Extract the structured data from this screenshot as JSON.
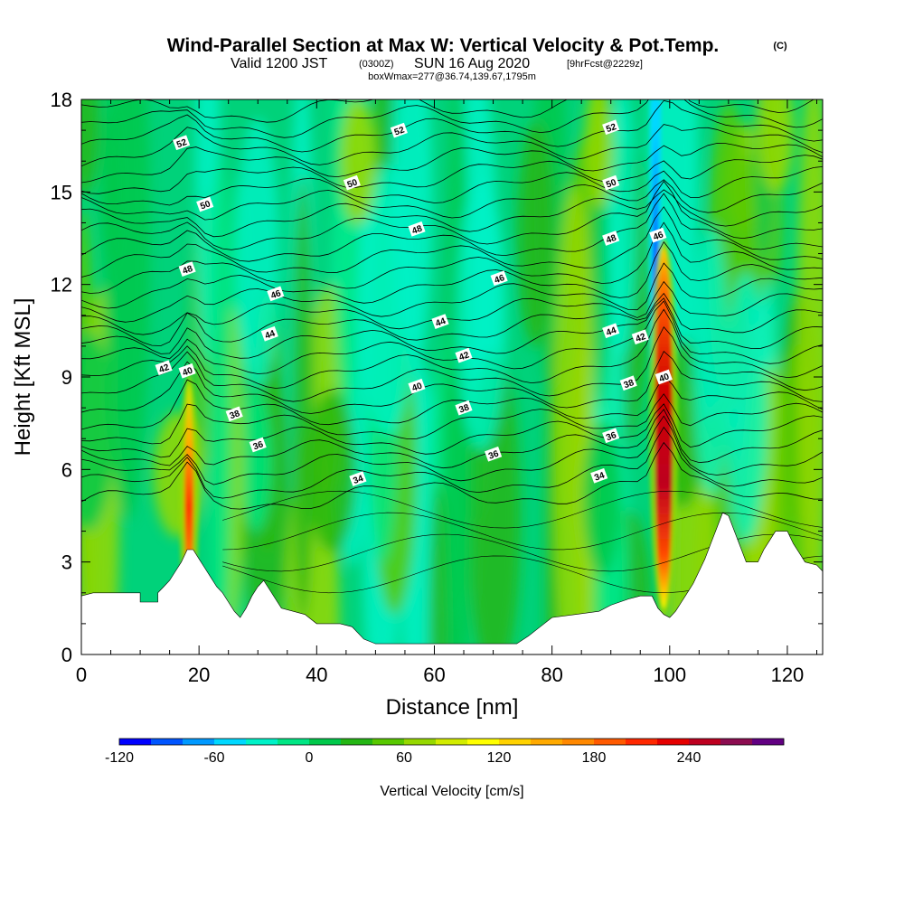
{
  "chart_data": {
    "type": "heatmap",
    "title": "Wind-Parallel Section at Max W: Vertical Velocity & Pot.Temp.",
    "title_mark": "(C)",
    "subtitle_valid": "Valid 1200 JST",
    "subtitle_utc": "(0300Z)",
    "subtitle_date": "SUN 16 Aug 2020",
    "subtitle_fcst": "[9hrFcst@2229z]",
    "subtitle2": "boxWmax=277@36.74,139.67,1795m",
    "xlabel": "Distance [nm]",
    "ylabel": "Height [Kft MSL]",
    "xlim": [
      0,
      126
    ],
    "ylim": [
      0,
      18
    ],
    "xticks": [
      "0",
      "20",
      "40",
      "60",
      "80",
      "100",
      "120"
    ],
    "yticks": [
      "0",
      "3",
      "6",
      "9",
      "12",
      "15",
      "18"
    ],
    "grid": false,
    "colorbar": {
      "label": "Vertical Velocity [cm/s]",
      "ticks": [
        "-120",
        "-60",
        "0",
        "60",
        "120",
        "180",
        "240"
      ],
      "colors": [
        "#0000ff",
        "#0055ff",
        "#0099ff",
        "#00d8ff",
        "#00f2c8",
        "#00e684",
        "#00c84a",
        "#24b614",
        "#58c800",
        "#96d800",
        "#d2ec00",
        "#ffff00",
        "#ffd200",
        "#ffaa00",
        "#ff8800",
        "#ff5a00",
        "#ff2800",
        "#e60000",
        "#be0020",
        "#8c0c50",
        "#620082"
      ]
    },
    "contour_labels": [
      {
        "value": "52",
        "x": 17,
        "y": 16.6
      },
      {
        "value": "52",
        "x": 54,
        "y": 17.0
      },
      {
        "value": "52",
        "x": 90,
        "y": 17.1
      },
      {
        "value": "50",
        "x": 21,
        "y": 14.6
      },
      {
        "value": "50",
        "x": 46,
        "y": 15.3
      },
      {
        "value": "50",
        "x": 90,
        "y": 15.3
      },
      {
        "value": "48",
        "x": 18,
        "y": 12.5
      },
      {
        "value": "48",
        "x": 57,
        "y": 13.8
      },
      {
        "value": "48",
        "x": 90,
        "y": 13.5
      },
      {
        "value": "46",
        "x": 33,
        "y": 11.7
      },
      {
        "value": "46",
        "x": 71,
        "y": 12.2
      },
      {
        "value": "46",
        "x": 98,
        "y": 13.6
      },
      {
        "value": "44",
        "x": 32,
        "y": 10.4
      },
      {
        "value": "44",
        "x": 61,
        "y": 10.8
      },
      {
        "value": "44",
        "x": 90,
        "y": 10.5
      },
      {
        "value": "42",
        "x": 14,
        "y": 9.3
      },
      {
        "value": "42",
        "x": 65,
        "y": 9.7
      },
      {
        "value": "42",
        "x": 95,
        "y": 10.3
      },
      {
        "value": "40",
        "x": 18,
        "y": 9.2
      },
      {
        "value": "40",
        "x": 57,
        "y": 8.7
      },
      {
        "value": "40",
        "x": 99,
        "y": 9.0
      },
      {
        "value": "38",
        "x": 26,
        "y": 7.8
      },
      {
        "value": "38",
        "x": 65,
        "y": 8.0
      },
      {
        "value": "38",
        "x": 93,
        "y": 8.8
      },
      {
        "value": "36",
        "x": 30,
        "y": 6.8
      },
      {
        "value": "36",
        "x": 70,
        "y": 6.5
      },
      {
        "value": "36",
        "x": 90,
        "y": 7.1
      },
      {
        "value": "34",
        "x": 47,
        "y": 5.7
      },
      {
        "value": "34",
        "x": 88,
        "y": 5.8
      }
    ],
    "terrain": [
      [
        0,
        1.9
      ],
      [
        2,
        2.0
      ],
      [
        10,
        2.0
      ],
      [
        10,
        1.7
      ],
      [
        13,
        1.7
      ],
      [
        13,
        2.0
      ],
      [
        14,
        2.2
      ],
      [
        15,
        2.4
      ],
      [
        16,
        2.7
      ],
      [
        17,
        3.0
      ],
      [
        18,
        3.4
      ],
      [
        19,
        3.4
      ],
      [
        20,
        3.1
      ],
      [
        21,
        2.8
      ],
      [
        22,
        2.5
      ],
      [
        23,
        2.2
      ],
      [
        24,
        2.0
      ],
      [
        25,
        1.7
      ],
      [
        26,
        1.4
      ],
      [
        27,
        1.2
      ],
      [
        28,
        1.5
      ],
      [
        29,
        1.9
      ],
      [
        30,
        2.2
      ],
      [
        31,
        2.4
      ],
      [
        32,
        2.1
      ],
      [
        33,
        1.8
      ],
      [
        34,
        1.5
      ],
      [
        36,
        1.4
      ],
      [
        38,
        1.3
      ],
      [
        40,
        1.0
      ],
      [
        44,
        1.0
      ],
      [
        46,
        0.9
      ],
      [
        47,
        0.7
      ],
      [
        48,
        0.5
      ],
      [
        50,
        0.35
      ],
      [
        70,
        0.35
      ],
      [
        74,
        0.35
      ],
      [
        76,
        0.6
      ],
      [
        78,
        0.9
      ],
      [
        80,
        1.2
      ],
      [
        84,
        1.3
      ],
      [
        88,
        1.4
      ],
      [
        90,
        1.6
      ],
      [
        93,
        1.8
      ],
      [
        95,
        1.9
      ],
      [
        97,
        1.9
      ],
      [
        98,
        1.5
      ],
      [
        99,
        1.3
      ],
      [
        100,
        1.2
      ],
      [
        101,
        1.4
      ],
      [
        102,
        1.7
      ],
      [
        103,
        2.0
      ],
      [
        104,
        2.3
      ],
      [
        105,
        2.7
      ],
      [
        106,
        3.1
      ],
      [
        107,
        3.6
      ],
      [
        108,
        4.1
      ],
      [
        109,
        4.6
      ],
      [
        110,
        4.5
      ],
      [
        111,
        4.0
      ],
      [
        112,
        3.5
      ],
      [
        113,
        3.0
      ],
      [
        115,
        3.0
      ],
      [
        116,
        3.4
      ],
      [
        117,
        3.7
      ],
      [
        118,
        4.0
      ],
      [
        120,
        4.0
      ],
      [
        121,
        3.6
      ],
      [
        122,
        3.3
      ],
      [
        123,
        3.0
      ],
      [
        125,
        2.9
      ],
      [
        126,
        2.7
      ]
    ],
    "updraft_cores": [
      {
        "x": 18.3,
        "ytop": 8.8,
        "peak": 230
      },
      {
        "x": 99.0,
        "ytop": 13.2,
        "peak": 277
      }
    ],
    "downdraft_column": {
      "x": 97.6,
      "ybottom": 9.0,
      "peak": -120
    }
  }
}
